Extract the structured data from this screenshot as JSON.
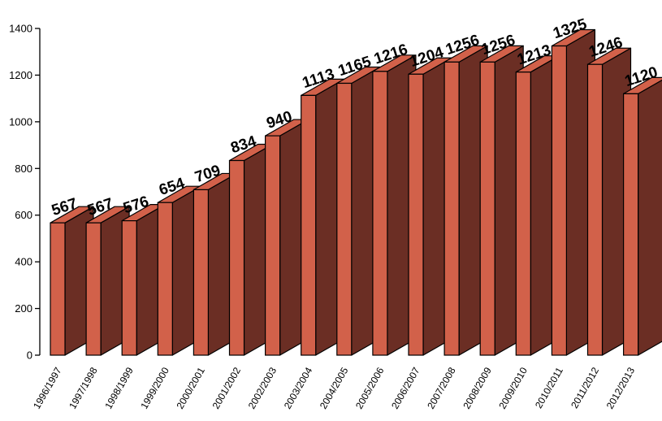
{
  "chart_data": {
    "type": "bar",
    "categories": [
      "1996/1997",
      "1997/1998",
      "1998/1999",
      "1999/2000",
      "2000/2001",
      "2001/2002",
      "2002/2003",
      "2003/2004",
      "2004/2005",
      "2005/2006",
      "2006/2007",
      "2007/2008",
      "2008/2009",
      "2009/2010",
      "2010/2011",
      "2011/2012",
      "2012/2013"
    ],
    "values": [
      567,
      567,
      576,
      654,
      709,
      834,
      940,
      1113,
      1165,
      1216,
      1204,
      1256,
      1256,
      1213,
      1325,
      1246,
      1120
    ],
    "data_labels": [
      "567",
      "567",
      "576",
      "654",
      "709",
      "834",
      "940",
      "1113",
      "1165",
      "1216",
      "1204",
      "1256",
      "1256",
      "1213",
      "1325",
      "1246",
      "1120"
    ],
    "title": "",
    "xlabel": "",
    "ylabel": "",
    "ylim": [
      0,
      1400
    ],
    "yticks": [
      0,
      200,
      400,
      600,
      800,
      1000,
      1200,
      1400
    ],
    "ytick_labels": [
      "0",
      "200",
      "400",
      "600",
      "800",
      "1000",
      "1200",
      "1400"
    ],
    "grid": false,
    "legend": "none",
    "style": "3d",
    "colors": {
      "front": "#d2614a",
      "side": "#6b2e24",
      "top": "#d2614a",
      "outline": "#000000"
    }
  }
}
